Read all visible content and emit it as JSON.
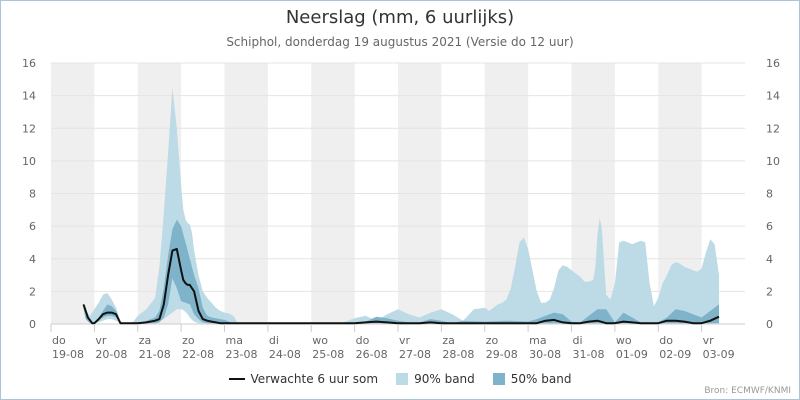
{
  "chart_data": {
    "type": "area",
    "title": "Neerslag (mm, 6 uurlijks)",
    "subtitle": "Schiphol, donderdag 19 augustus 2021 (Versie do 12 uur)",
    "source": "Bron: ECMWF/KNMI",
    "ylim": [
      0,
      16
    ],
    "y_ticks": [
      0,
      2,
      4,
      6,
      8,
      10,
      12,
      14,
      16
    ],
    "x_unit": "days since 19-08 00:00",
    "days": [
      {
        "day": "do",
        "date": "19-08"
      },
      {
        "day": "vr",
        "date": "20-08"
      },
      {
        "day": "za",
        "date": "21-08"
      },
      {
        "day": "zo",
        "date": "22-08"
      },
      {
        "day": "ma",
        "date": "23-08"
      },
      {
        "day": "di",
        "date": "24-08"
      },
      {
        "day": "wo",
        "date": "25-08"
      },
      {
        "day": "do",
        "date": "26-08"
      },
      {
        "day": "vr",
        "date": "27-08"
      },
      {
        "day": "za",
        "date": "28-08"
      },
      {
        "day": "zo",
        "date": "29-08"
      },
      {
        "day": "ma",
        "date": "30-08"
      },
      {
        "day": "di",
        "date": "31-08"
      },
      {
        "day": "wo",
        "date": "01-09"
      },
      {
        "day": "do",
        "date": "02-09"
      },
      {
        "day": "vr",
        "date": "03-09"
      }
    ],
    "series": [
      {
        "name": "90% band",
        "color": "#bcdbe6",
        "x": [
          0.75,
          0.8,
          0.9,
          1.0,
          1.1,
          1.2,
          1.3,
          1.4,
          1.5,
          1.6,
          1.75,
          1.9,
          2.0,
          2.2,
          2.4,
          2.5,
          2.6,
          2.7,
          2.8,
          2.9,
          3.0,
          3.05,
          3.1,
          3.15,
          3.2,
          3.25,
          3.3,
          3.4,
          3.5,
          3.6,
          3.7,
          3.8,
          3.9,
          4.0,
          4.1,
          4.2,
          4.3,
          4.4,
          4.5,
          4.6,
          4.7,
          4.8,
          4.9,
          5.0,
          5.25,
          5.5,
          5.75,
          6.0,
          6.25,
          6.5,
          6.75,
          7.0,
          7.25,
          7.5,
          7.75,
          8.0,
          8.25,
          8.5,
          8.75,
          9.0,
          9.25,
          9.5,
          9.75,
          10.0,
          10.1,
          10.2,
          10.3,
          10.4,
          10.5,
          10.6,
          10.7,
          10.8,
          10.9,
          11.0,
          11.2,
          11.3,
          11.4,
          11.5,
          11.6,
          11.7,
          11.8,
          11.9,
          12.0,
          12.2,
          12.3,
          12.4,
          12.5,
          12.55,
          12.6,
          12.65,
          12.7,
          12.8,
          12.9,
          13.0,
          13.1,
          13.2,
          13.3,
          13.4,
          13.5,
          13.6,
          13.7,
          13.8,
          13.9,
          14.0,
          14.1,
          14.2,
          14.3,
          14.4,
          14.5,
          14.6,
          14.7,
          14.8,
          14.9,
          15.0,
          15.1,
          15.2,
          15.3,
          15.4
        ],
        "upper": [
          1.2,
          0.8,
          0.5,
          0.9,
          1.3,
          1.8,
          1.9,
          1.5,
          1.0,
          0.15,
          0.05,
          0.15,
          0.5,
          0.9,
          1.6,
          3.5,
          6.8,
          10.5,
          14.5,
          12.0,
          8.5,
          7.0,
          6.4,
          6.2,
          6.1,
          5.6,
          4.5,
          3.0,
          2.0,
          1.6,
          1.3,
          1.0,
          0.8,
          0.7,
          0.65,
          0.5,
          0.1,
          0.05,
          0.05,
          0.05,
          0.05,
          0.05,
          0.05,
          0.05,
          0.05,
          0.05,
          0.05,
          0.05,
          0.05,
          0.05,
          0.1,
          0.35,
          0.5,
          0.2,
          0.6,
          0.9,
          0.6,
          0.4,
          0.7,
          0.9,
          0.6,
          0.2,
          0.9,
          1.0,
          0.8,
          1.0,
          1.2,
          1.3,
          1.5,
          2.2,
          3.5,
          5.0,
          5.3,
          4.6,
          2.0,
          1.3,
          1.3,
          1.5,
          2.2,
          3.3,
          3.6,
          3.5,
          3.3,
          2.9,
          2.6,
          2.6,
          2.7,
          3.5,
          5.5,
          6.5,
          5.8,
          1.8,
          1.5,
          2.5,
          5.0,
          5.1,
          5.0,
          4.9,
          5.0,
          5.1,
          5.0,
          2.5,
          1.1,
          1.6,
          2.5,
          3.0,
          3.6,
          3.8,
          3.7,
          3.5,
          3.4,
          3.3,
          3.2,
          3.4,
          4.4,
          5.2,
          4.9,
          3.0
        ],
        "lower": [
          0.9,
          0.3,
          0.05,
          0.05,
          0.1,
          0.2,
          0.3,
          0.3,
          0.2,
          0.05,
          0.05,
          0.05,
          0.05,
          0.05,
          0.1,
          0.15,
          0.3,
          0.5,
          0.7,
          0.9,
          0.9,
          0.85,
          0.75,
          0.6,
          0.4,
          0.25,
          0.15,
          0.05,
          0.05,
          0.05,
          0.05,
          0.05,
          0.05,
          0.05,
          0.05,
          0.05,
          0.05,
          0.05,
          0.05,
          0.05,
          0.05,
          0.05,
          0.05,
          0.05,
          0.05,
          0.05,
          0.05,
          0.05,
          0.05,
          0.05,
          0.05,
          0.05,
          0.05,
          0.05,
          0.05,
          0.05,
          0.05,
          0.05,
          0.05,
          0.05,
          0.05,
          0.05,
          0.05,
          0.05,
          0.05,
          0.05,
          0.05,
          0.05,
          0.05,
          0.05,
          0.05,
          0.05,
          0.05,
          0.05,
          0.05,
          0.05,
          0.05,
          0.05,
          0.05,
          0.05,
          0.05,
          0.05,
          0.05,
          0.05,
          0.05,
          0.05,
          0.05,
          0.05,
          0.05,
          0.05,
          0.05,
          0.05,
          0.05,
          0.05,
          0.05,
          0.05,
          0.05,
          0.05,
          0.05,
          0.05,
          0.05,
          0.05,
          0.05,
          0.05,
          0.05,
          0.05,
          0.05,
          0.05,
          0.05,
          0.05,
          0.05,
          0.05,
          0.05,
          0.05,
          0.05,
          0.05,
          0.05,
          0.05
        ]
      },
      {
        "name": "50% band",
        "color": "#7fb3c9",
        "x": [
          0.75,
          0.8,
          0.9,
          1.0,
          1.1,
          1.2,
          1.3,
          1.4,
          1.5,
          1.6,
          1.75,
          2.0,
          2.2,
          2.4,
          2.5,
          2.6,
          2.7,
          2.8,
          2.9,
          3.0,
          3.1,
          3.2,
          3.3,
          3.4,
          3.5,
          3.6,
          3.7,
          3.8,
          3.9,
          4.0,
          4.2,
          4.4,
          5.0,
          6.0,
          6.5,
          7.0,
          7.25,
          7.5,
          7.75,
          8.0,
          8.25,
          8.5,
          8.75,
          9.0,
          9.25,
          9.5,
          10.0,
          10.5,
          11.0,
          11.2,
          11.4,
          11.6,
          11.8,
          12.0,
          12.2,
          12.4,
          12.6,
          12.8,
          13.0,
          13.2,
          13.4,
          13.6,
          13.8,
          14.0,
          14.2,
          14.4,
          14.6,
          14.8,
          15.0,
          15.2,
          15.4
        ],
        "upper": [
          1.3,
          0.6,
          0.1,
          0.1,
          0.4,
          0.8,
          1.2,
          1.1,
          0.8,
          0.1,
          0.05,
          0.05,
          0.2,
          0.4,
          0.8,
          2.2,
          4.2,
          5.8,
          6.4,
          6.0,
          5.0,
          4.0,
          3.0,
          2.2,
          1.0,
          0.5,
          0.4,
          0.35,
          0.3,
          0.25,
          0.05,
          0.05,
          0.05,
          0.05,
          0.05,
          0.05,
          0.15,
          0.45,
          0.35,
          0.2,
          0.1,
          0.1,
          0.3,
          0.2,
          0.05,
          0.2,
          0.15,
          0.2,
          0.15,
          0.3,
          0.5,
          0.7,
          0.6,
          0.15,
          0.1,
          0.5,
          0.9,
          0.9,
          0.1,
          0.7,
          0.4,
          0.1,
          0.1,
          0.1,
          0.4,
          0.9,
          0.8,
          0.6,
          0.4,
          0.8,
          1.2
        ],
        "lower": [
          1.0,
          0.3,
          0.05,
          0.05,
          0.2,
          0.4,
          0.5,
          0.5,
          0.4,
          0.05,
          0.05,
          0.05,
          0.05,
          0.05,
          0.1,
          0.4,
          1.2,
          2.8,
          2.2,
          1.4,
          1.3,
          1.2,
          0.6,
          0.3,
          0.1,
          0.05,
          0.05,
          0.05,
          0.05,
          0.05,
          0.05,
          0.05,
          0.05,
          0.05,
          0.05,
          0.05,
          0.05,
          0.05,
          0.05,
          0.05,
          0.05,
          0.05,
          0.05,
          0.05,
          0.05,
          0.05,
          0.05,
          0.05,
          0.05,
          0.05,
          0.05,
          0.05,
          0.05,
          0.05,
          0.05,
          0.05,
          0.05,
          0.05,
          0.05,
          0.05,
          0.05,
          0.05,
          0.05,
          0.05,
          0.05,
          0.05,
          0.05,
          0.05,
          0.05,
          0.05,
          0.05
        ]
      },
      {
        "name": "Verwachte 6 uur som",
        "color": "#111111",
        "x": [
          0.75,
          0.85,
          0.95,
          1.0,
          1.1,
          1.2,
          1.3,
          1.4,
          1.5,
          1.6,
          1.75,
          2.0,
          2.2,
          2.4,
          2.5,
          2.6,
          2.7,
          2.8,
          2.9,
          3.0,
          3.05,
          3.1,
          3.15,
          3.2,
          3.3,
          3.4,
          3.5,
          3.6,
          3.7,
          3.8,
          3.9,
          4.0,
          4.2,
          4.5,
          5.0,
          6.0,
          7.0,
          7.25,
          7.5,
          7.75,
          8.0,
          8.25,
          8.5,
          8.75,
          9.0,
          9.25,
          9.5,
          10.0,
          10.5,
          11.0,
          11.2,
          11.4,
          11.6,
          11.8,
          12.0,
          12.2,
          12.4,
          12.6,
          12.8,
          13.0,
          13.2,
          13.4,
          13.6,
          13.8,
          14.0,
          14.2,
          14.4,
          14.6,
          14.8,
          15.0,
          15.2,
          15.4
        ],
        "values": [
          1.2,
          0.4,
          0.05,
          0.05,
          0.3,
          0.6,
          0.7,
          0.7,
          0.6,
          0.05,
          0.05,
          0.05,
          0.1,
          0.2,
          0.3,
          1.2,
          3.0,
          4.5,
          4.6,
          3.3,
          2.7,
          2.5,
          2.4,
          2.4,
          2.0,
          0.8,
          0.3,
          0.2,
          0.15,
          0.1,
          0.05,
          0.05,
          0.05,
          0.05,
          0.05,
          0.05,
          0.05,
          0.1,
          0.15,
          0.1,
          0.05,
          0.05,
          0.05,
          0.1,
          0.05,
          0.05,
          0.05,
          0.05,
          0.05,
          0.05,
          0.05,
          0.2,
          0.25,
          0.1,
          0.05,
          0.05,
          0.15,
          0.2,
          0.05,
          0.05,
          0.15,
          0.1,
          0.05,
          0.05,
          0.05,
          0.2,
          0.2,
          0.15,
          0.05,
          0.05,
          0.2,
          0.45
        ]
      }
    ]
  }
}
